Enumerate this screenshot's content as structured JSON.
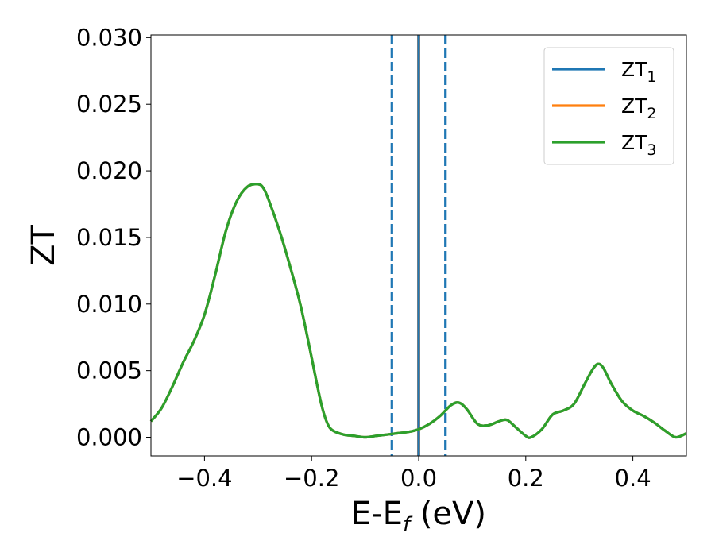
{
  "chart_data": {
    "type": "line",
    "xlabel": {
      "main": "E-E",
      "sub": "f",
      "tail": " (eV)"
    },
    "ylabel": "ZT",
    "xlim": [
      -0.5,
      0.5
    ],
    "ylim": [
      -0.0014,
      0.0302
    ],
    "xticks": [
      -0.4,
      -0.2,
      0.0,
      0.2,
      0.4
    ],
    "xtick_labels": [
      "−0.4",
      "−0.2",
      "0.0",
      "0.2",
      "0.4"
    ],
    "yticks": [
      0.0,
      0.005,
      0.01,
      0.015,
      0.02,
      0.025,
      0.03
    ],
    "ytick_labels": [
      "0.000",
      "0.005",
      "0.010",
      "0.015",
      "0.020",
      "0.025",
      "0.030"
    ],
    "grid": false,
    "legend": {
      "placement": "top-right",
      "entries": [
        {
          "main": "ZT",
          "sub": "1",
          "color": "#1f77b4"
        },
        {
          "main": "ZT",
          "sub": "2",
          "color": "#ff7f0e"
        },
        {
          "main": "ZT",
          "sub": "3",
          "color": "#2ca02c"
        }
      ]
    },
    "series": [
      {
        "name": "ZT₁",
        "color": "#1f77b4"
      },
      {
        "name": "ZT₂",
        "color": "#ff7f0e"
      },
      {
        "name": "ZT₃",
        "color": "#2ca02c"
      }
    ],
    "curve": {
      "x": [
        -0.5,
        -0.48,
        -0.46,
        -0.44,
        -0.42,
        -0.4,
        -0.38,
        -0.36,
        -0.34,
        -0.32,
        -0.3,
        -0.29,
        -0.28,
        -0.26,
        -0.24,
        -0.22,
        -0.2,
        -0.19,
        -0.18,
        -0.17,
        -0.16,
        -0.14,
        -0.12,
        -0.1,
        -0.08,
        -0.06,
        -0.04,
        -0.02,
        0.0,
        0.02,
        0.04,
        0.06,
        0.075,
        0.09,
        0.11,
        0.13,
        0.15,
        0.165,
        0.18,
        0.2,
        0.21,
        0.23,
        0.25,
        0.27,
        0.29,
        0.31,
        0.325,
        0.335,
        0.345,
        0.36,
        0.38,
        0.4,
        0.42,
        0.44,
        0.46,
        0.48,
        0.5
      ],
      "y": [
        0.0012,
        0.0022,
        0.0038,
        0.0056,
        0.0072,
        0.0092,
        0.0122,
        0.0155,
        0.0177,
        0.0188,
        0.019,
        0.0187,
        0.0178,
        0.0155,
        0.0128,
        0.0098,
        0.006,
        0.004,
        0.0022,
        0.001,
        0.0005,
        0.0002,
        0.0001,
        0.0,
        0.0001,
        0.0002,
        0.0003,
        0.0004,
        0.0006,
        0.001,
        0.0016,
        0.0024,
        0.0026,
        0.0021,
        0.001,
        0.0009,
        0.0012,
        0.0013,
        0.0008,
        0.0001,
        0.0,
        0.0006,
        0.0017,
        0.002,
        0.0025,
        0.004,
        0.0051,
        0.0055,
        0.0052,
        0.004,
        0.0027,
        0.002,
        0.0016,
        0.0011,
        0.0005,
        0.0,
        0.0003
      ]
    },
    "vertical_lines": [
      {
        "x": -0.05,
        "style": "dashed",
        "color": "#1f77b4"
      },
      {
        "x": 0.05,
        "style": "dashed",
        "color": "#1f77b4"
      },
      {
        "x": 0.0,
        "style": "solid",
        "color": "#000000"
      },
      {
        "x": 0.0,
        "style": "solid",
        "color": "#1f77b4"
      }
    ]
  }
}
